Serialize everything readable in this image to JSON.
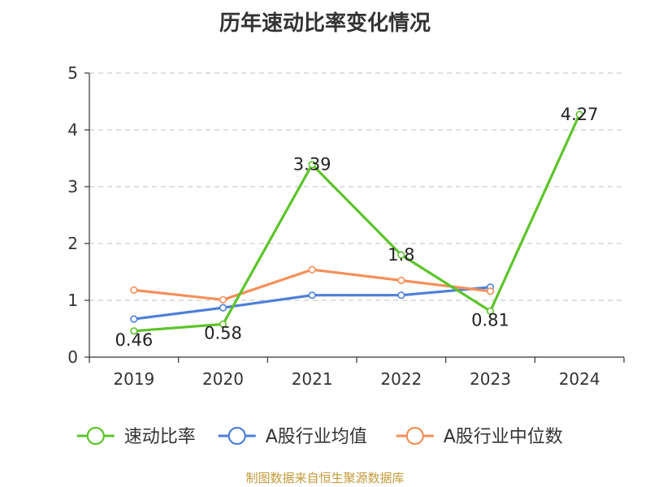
{
  "title": "历年速动比率变化情况",
  "footer": "制图数据来自恒生聚源数据库",
  "chart_data": {
    "type": "line",
    "categories": [
      "2019",
      "2020",
      "2021",
      "2022",
      "2023",
      "2024"
    ],
    "ylim": [
      0,
      5
    ],
    "yticks": [
      0,
      1,
      2,
      3,
      4,
      5
    ],
    "grid": true,
    "legend_position": "bottom",
    "series": [
      {
        "name": "速动比率",
        "color": "#5dc42a",
        "values": [
          0.46,
          0.58,
          3.39,
          1.8,
          0.81,
          4.27
        ],
        "labels": [
          "0.46",
          "0.58",
          "3.39",
          "1.8",
          "0.81",
          "4.27"
        ]
      },
      {
        "name": "A股行业均值",
        "color": "#4e7fd8",
        "values": [
          0.67,
          0.87,
          1.09,
          1.09,
          1.23,
          null
        ]
      },
      {
        "name": "A股行业中位数",
        "color": "#f5905a",
        "values": [
          1.18,
          1.01,
          1.54,
          1.35,
          1.16,
          null
        ]
      }
    ]
  }
}
